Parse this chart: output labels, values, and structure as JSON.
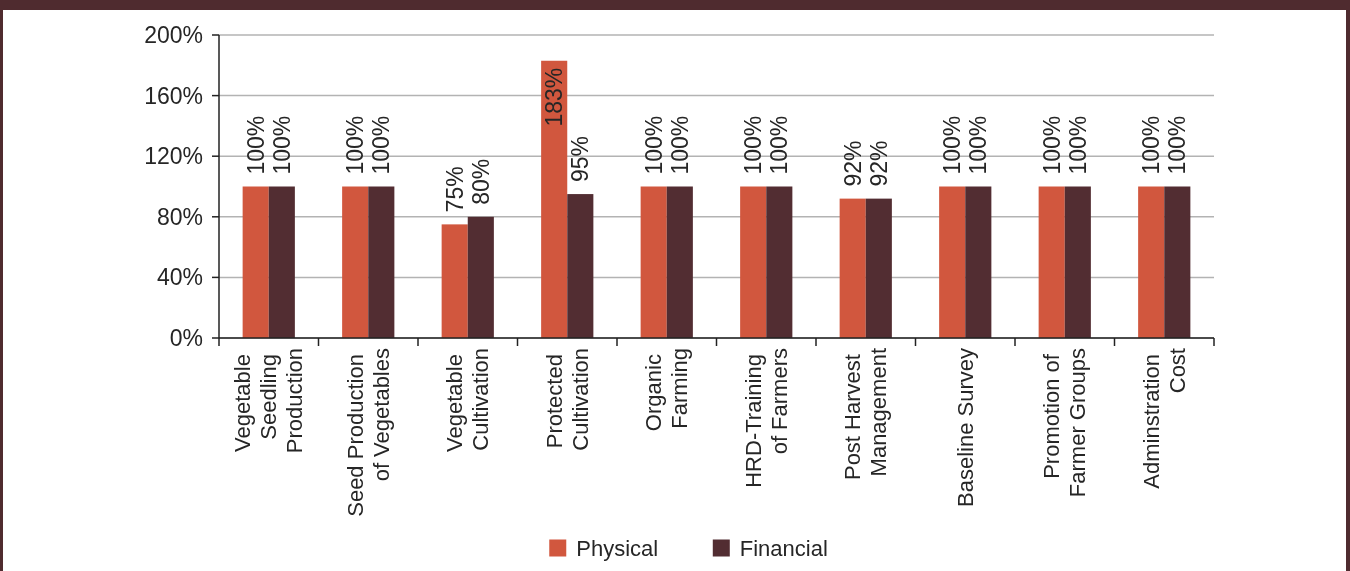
{
  "chart_data": {
    "type": "bar",
    "categories": [
      "Vegetable\nSeedling\nProduction",
      "Seed Production\nof Vegetables",
      "Vegetable\nCultivation",
      "Protected\nCultivation",
      "Organic\nFarming",
      "HRD-Training\nof Farmers",
      "Post Harvest\nManagement",
      "Baseline Survey",
      "Promotion of\nFarmer Groups",
      "Adminstration\nCost"
    ],
    "series": [
      {
        "name": "Physical",
        "color": "#d1573e",
        "values": [
          100,
          100,
          75,
          183,
          100,
          100,
          92,
          100,
          100,
          100
        ],
        "value_labels": [
          "100%",
          "100%",
          "75%",
          "183%",
          "100%",
          "100%",
          "92%",
          "100%",
          "100%",
          "100%"
        ]
      },
      {
        "name": "Financial",
        "color": "#522d32",
        "values": [
          100,
          100,
          80,
          95,
          100,
          100,
          92,
          100,
          100,
          100
        ],
        "value_labels": [
          "100%",
          "100%",
          "80%",
          "95%",
          "100%",
          "100%",
          "92%",
          "100%",
          "100%",
          "100%"
        ]
      }
    ],
    "ylim": [
      0,
      200
    ],
    "yticks": [
      {
        "value": 0,
        "label": "0%"
      },
      {
        "value": 40,
        "label": "40%"
      },
      {
        "value": 80,
        "label": "80%"
      },
      {
        "value": 120,
        "label": "120%"
      },
      {
        "value": 160,
        "label": "160%"
      },
      {
        "value": 200,
        "label": "200%"
      }
    ],
    "grid": "y",
    "legend": "bottom"
  }
}
